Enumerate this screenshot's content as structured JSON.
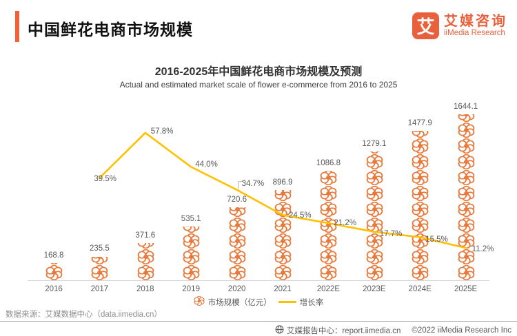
{
  "header": {
    "title": "中国鲜花电商市场规模"
  },
  "logo": {
    "mark": "艾",
    "name_cn": "艾媒咨询",
    "name_en": "iiMedia Research"
  },
  "chart_data": {
    "type": "combo",
    "title": "2016-2025年中国鲜花电商市场规模及预测",
    "subtitle": "Actual and estimated market scale of flower e-commerce from 2016 to 2025",
    "categories": [
      "2016",
      "2017",
      "2018",
      "2019",
      "2020",
      "2021",
      "2022E",
      "2023E",
      "2024E",
      "2025E"
    ],
    "series": [
      {
        "name": "市场规模（亿元）",
        "type": "pictogram-bar",
        "icon": "flower-icon",
        "unit": "亿元",
        "color": "#E8793B",
        "values": [
          168.8,
          235.5,
          371.6,
          535.1,
          720.6,
          896.9,
          1086.8,
          1279.1,
          1477.9,
          1644.1
        ]
      },
      {
        "name": "增长率",
        "type": "line",
        "unit": "%",
        "color": "#FFC000",
        "values": [
          null,
          39.5,
          57.8,
          44.0,
          34.7,
          24.5,
          21.2,
          17.7,
          15.5,
          11.2
        ]
      }
    ],
    "legend_position": "bottom",
    "axes": {
      "y_axis_visible": false,
      "gridlines": false,
      "x_baseline": true
    }
  },
  "footer": {
    "source": "数据来源：艾媒数据中心（data.iimedia.cn）",
    "report_center": "艾媒报告中心：report.iimedia.cn",
    "copyright": "©2022 iiMedia Research Inc"
  }
}
